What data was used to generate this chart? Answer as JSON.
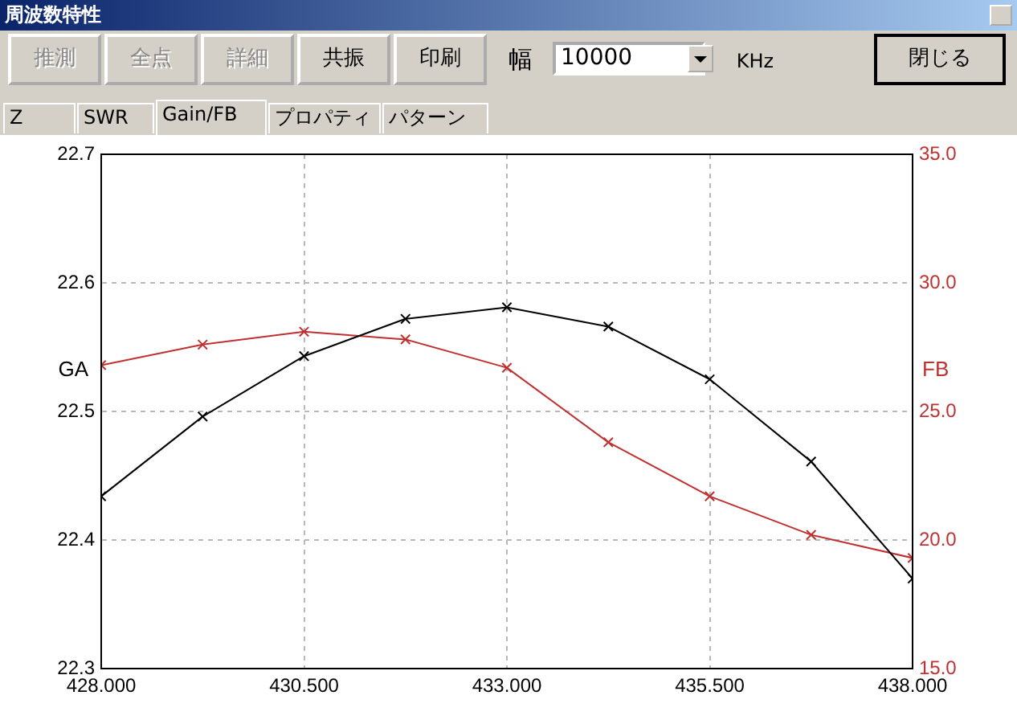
{
  "chart_data": {
    "type": "line",
    "title": "周波数特性",
    "annotations": [
      "推測",
      "全点",
      "詳細",
      "共振",
      "印刷",
      "幅",
      "10000",
      "KHz",
      "閉じる",
      "Z",
      "SWR",
      "Gain/FB",
      "プロパティ",
      "パターン"
    ],
    "ylabel": "GA",
    "y2label": "FB",
    "x": [
      428,
      429.25,
      430.5,
      431.75,
      433,
      434.25,
      435.5,
      436.75,
      438
    ],
    "series": [
      {
        "color": "#000000",
        "values": [
          22.434,
          22.496,
          22.543,
          22.572,
          22.581,
          22.566,
          22.525,
          22.461,
          22.37
        ]
      },
      {
        "color": "#c03030",
        "axis": "y2",
        "values": [
          26.8,
          27.6,
          28.1,
          27.8,
          26.7,
          23.8,
          21.7,
          20.2,
          19.3
        ]
      }
    ],
    "xlim": [
      428,
      438
    ],
    "xticks": [
      {
        "value": 428,
        "label": "428.000"
      },
      {
        "value": 430.5,
        "label": "430.500"
      },
      {
        "value": 433,
        "label": "433.000"
      },
      {
        "value": 435.5,
        "label": "435.500"
      },
      {
        "value": 438,
        "label": "438.000"
      }
    ],
    "ylim": [
      22.3,
      22.7
    ],
    "yticks": [
      22.3,
      22.4,
      22.5,
      22.6,
      22.7
    ],
    "y2lim": [
      15,
      35
    ],
    "y2ticks": [
      {
        "value": 15,
        "label": "15.0"
      },
      {
        "value": 20,
        "label": "20.0"
      },
      {
        "value": 25,
        "label": "25.0"
      },
      {
        "value": 30,
        "label": "30.0"
      },
      {
        "value": 35,
        "label": "35.0"
      }
    ],
    "grid": true,
    "marker": "cross",
    "line_style": "solid",
    "legend": false
  }
}
